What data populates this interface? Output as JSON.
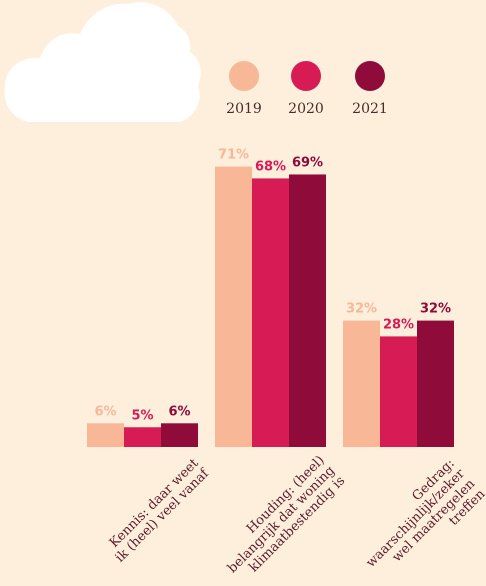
{
  "chart_data": {
    "type": "bar",
    "categories": [
      [
        "Kennis: daar weet",
        "ik (heel) veel vanaf"
      ],
      [
        "Houding: (heel)",
        "belangrijk dat woning",
        "klimaatbestendig is"
      ],
      [
        "Gedrag:",
        "waarschijnlijk/zeker",
        "wel maatregelen",
        "treffen"
      ]
    ],
    "series": [
      {
        "name": "2019",
        "values": [
          6,
          71,
          32
        ],
        "labels": [
          "6%",
          "71%",
          "32%"
        ],
        "color": "#f8b897"
      },
      {
        "name": "2020",
        "values": [
          5,
          68,
          28
        ],
        "labels": [
          "5%",
          "68%",
          "28%"
        ],
        "color": "#d71b55"
      },
      {
        "name": "2021",
        "values": [
          6,
          69,
          32
        ],
        "labels": [
          "6%",
          "69%",
          "32%"
        ],
        "color": "#8e0b3a"
      }
    ],
    "ylim": [
      0,
      100
    ],
    "legend": "top-right",
    "grid": false
  },
  "colors": {
    "background": "#fdefdc",
    "cloud": "#ffffff"
  }
}
